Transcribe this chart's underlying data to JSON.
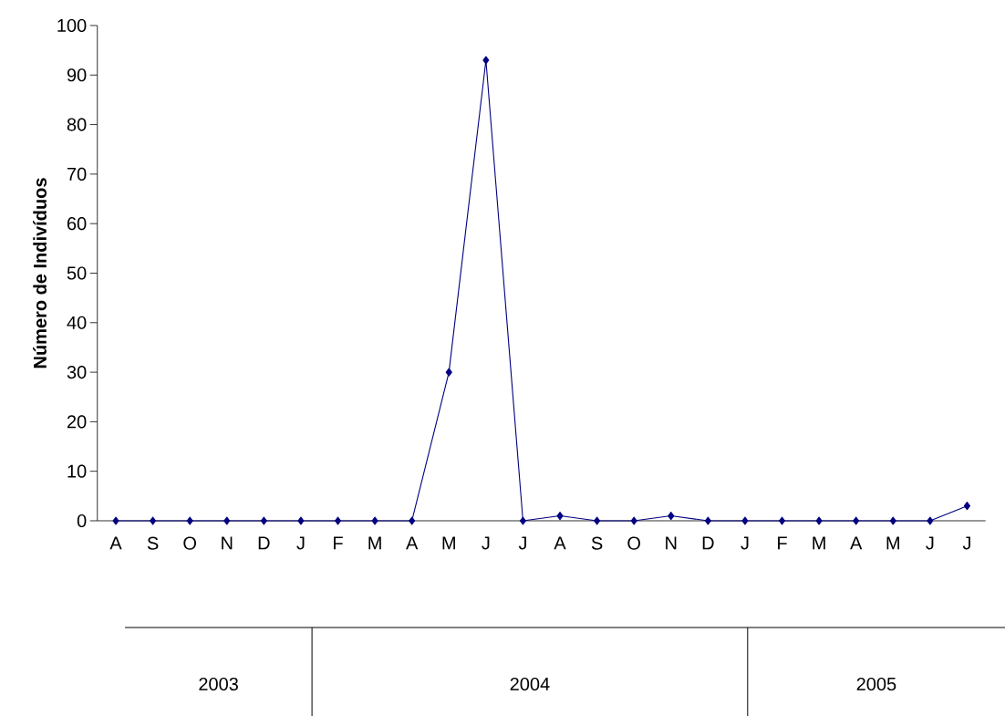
{
  "chart_data": {
    "type": "line",
    "ylabel": "Número de Indivíduos",
    "categories": [
      "A",
      "S",
      "O",
      "N",
      "D",
      "J",
      "F",
      "M",
      "A",
      "M",
      "J",
      "J",
      "A",
      "S",
      "O",
      "N",
      "D",
      "J",
      "F",
      "M",
      "A",
      "M",
      "J",
      "J"
    ],
    "series": [
      {
        "color": "#000080",
        "values": [
          0,
          0,
          0,
          0,
          0,
          0,
          0,
          0,
          0,
          30,
          93,
          0,
          1,
          0,
          0,
          1,
          0,
          0,
          0,
          0,
          0,
          0,
          0,
          3
        ]
      }
    ],
    "ylim": [
      0,
      100
    ],
    "yticks": [
      0,
      10,
      20,
      30,
      40,
      50,
      60,
      70,
      80,
      90,
      100
    ],
    "marker": "diamond",
    "line_style": "solid",
    "grid": false,
    "annotations": [
      "2003",
      "2004",
      "2005"
    ]
  }
}
